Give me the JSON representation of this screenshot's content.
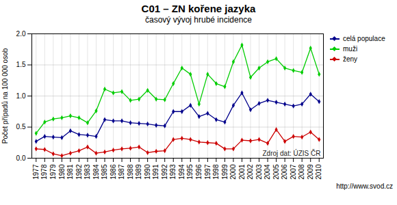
{
  "chart_data": {
    "type": "line",
    "title": "C01 – ZN kořene jazyka",
    "subtitle": "časový vývoj hrubé incidence",
    "ylabel": "Počet případů na 100 000 osob",
    "annotations": [
      "Zdroj dat: ÚZIS ČR",
      "http://www.svod.cz"
    ],
    "x": [
      1977,
      1978,
      1979,
      1980,
      1981,
      1982,
      1983,
      1984,
      1985,
      1986,
      1987,
      1988,
      1989,
      1990,
      1991,
      1992,
      1993,
      1994,
      1995,
      1996,
      1997,
      1998,
      1999,
      2000,
      2001,
      2002,
      2003,
      2004,
      2005,
      2006,
      2007,
      2008,
      2009,
      2010
    ],
    "series": [
      {
        "name": "celá populace",
        "color": "#00008B",
        "values": [
          0.27,
          0.35,
          0.34,
          0.33,
          0.44,
          0.38,
          0.37,
          0.35,
          0.62,
          0.6,
          0.6,
          0.57,
          0.56,
          0.55,
          0.53,
          0.52,
          0.75,
          0.75,
          0.85,
          0.67,
          0.72,
          0.62,
          0.58,
          0.85,
          1.05,
          0.78,
          0.88,
          0.93,
          0.9,
          0.87,
          0.84,
          0.87,
          1.03,
          0.91
        ]
      },
      {
        "name": "muži",
        "color": "#00CC00",
        "values": [
          0.4,
          0.58,
          0.63,
          0.65,
          0.68,
          0.65,
          0.57,
          0.76,
          1.11,
          1.05,
          1.07,
          0.93,
          0.95,
          1.09,
          0.95,
          0.94,
          1.2,
          1.45,
          1.35,
          0.87,
          1.35,
          1.2,
          1.15,
          1.55,
          1.82,
          1.3,
          1.45,
          1.55,
          1.6,
          1.45,
          1.41,
          1.38,
          1.77,
          1.35
        ]
      },
      {
        "name": "ženy",
        "color": "#CC0000",
        "values": [
          0.15,
          0.14,
          0.07,
          0.04,
          0.08,
          0.12,
          0.18,
          0.08,
          0.1,
          0.13,
          0.15,
          0.16,
          0.18,
          0.09,
          0.11,
          0.12,
          0.3,
          0.32,
          0.3,
          0.26,
          0.25,
          0.24,
          0.15,
          0.15,
          0.29,
          0.28,
          0.3,
          0.24,
          0.46,
          0.27,
          0.35,
          0.34,
          0.42,
          0.3
        ]
      }
    ],
    "xlim": [
      1976.5,
      2010.5
    ],
    "xticks": [
      1977,
      1978,
      1979,
      1980,
      1981,
      1982,
      1983,
      1984,
      1985,
      1986,
      1987,
      1988,
      1989,
      1990,
      1991,
      1992,
      1993,
      1994,
      1995,
      1996,
      1997,
      1998,
      1999,
      2000,
      2001,
      2002,
      2003,
      2004,
      2005,
      2006,
      2007,
      2008,
      2009,
      2010
    ],
    "ylim": [
      0.0,
      2.0
    ],
    "yticks": [
      {
        "value": 0.0,
        "label": "0.0"
      },
      0.5,
      {
        "value": 1.0,
        "label": "1.0"
      },
      1.5,
      {
        "value": 2.0,
        "label": "2.0"
      }
    ],
    "grid": true,
    "legend": "right",
    "marker": "diamond"
  }
}
